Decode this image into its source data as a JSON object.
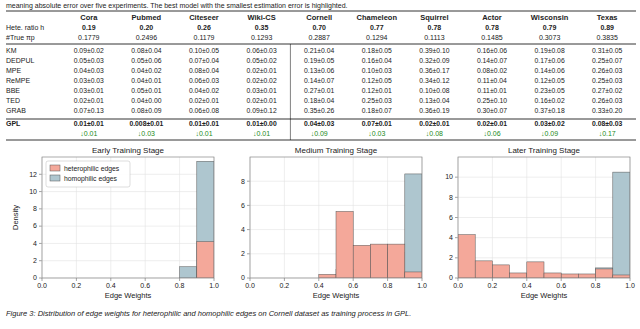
{
  "chart_data": [
    {
      "type": "table",
      "subtitle": "meaning absolute error over five experiments. The best model with the smallest estimation error is highlighted.",
      "caption": "Figure 3: Distribution of edge weights for heterophilic and homophilic edges on Cornell dataset as training process in GPL.",
      "categories": [
        "Cora",
        "Pubmed",
        "Citeseer",
        "Wiki-CS",
        "Cornell",
        "Chameleon",
        "Squirrel",
        "Actor",
        "Wisconsin",
        "Texas"
      ],
      "header_rows": [
        {
          "name": "Hete. ratio h",
          "values": [
            "0.19",
            "0.20",
            "0.26",
            "0.35",
            "0.70",
            "0.77",
            "0.78",
            "0.78",
            "0.79",
            "0.89"
          ]
        },
        {
          "name": "#True πp",
          "values": [
            "0.1779",
            "0.2496",
            "0.1179",
            "0.1293",
            "0.2887",
            "0.1294",
            "0.1113",
            "0.1485",
            "0.3073",
            "0.3835"
          ]
        }
      ],
      "series": [
        {
          "name": "KM",
          "values": [
            "0.09±0.02",
            "0.08±0.04",
            "0.10±0.05",
            "0.06±0.03",
            "0.21±0.04",
            "0.18±0.05",
            "0.39±0.10",
            "0.16±0.06",
            "0.19±0.08",
            "0.31±0.05"
          ]
        },
        {
          "name": "DEDPUL",
          "values": [
            "0.05±0.03",
            "0.05±0.06",
            "0.07±0.04",
            "0.05±0.02",
            "0.19±0.05",
            "0.16±0.04",
            "0.32±0.09",
            "0.14±0.07",
            "0.17±0.06",
            "0.25±0.07"
          ]
        },
        {
          "name": "MPE",
          "values": [
            "0.04±0.03",
            "0.04±0.02",
            "0.08±0.04",
            "0.02±0.01",
            "0.13±0.06",
            "0.10±0.03",
            "0.36±0.17",
            "0.08±0.02",
            "0.14±0.06",
            "0.26±0.03"
          ]
        },
        {
          "name": "ReMPE",
          "values": [
            "0.03±0.03",
            "0.04±0.01",
            "0.06±0.03",
            "0.02±0.02",
            "0.14±0.07",
            "0.12±0.05",
            "0.34±0.12",
            "0.11±0.04",
            "0.12±0.05",
            "0.25±0.03"
          ]
        },
        {
          "name": "BBE",
          "values": [
            "0.03±0.01",
            "0.05±0.01",
            "0.04±0.02",
            "0.03±0.01",
            "0.27±0.01",
            "0.12±0.01",
            "0.10±0.08",
            "0.11±0.01",
            "0.23±0.05",
            "0.27±0.02"
          ]
        },
        {
          "name": "TED",
          "values": [
            "0.02±0.01",
            "0.04±0.00",
            "0.02±0.01",
            "0.02±0.01",
            "0.18±0.04",
            "0.25±0.03",
            "0.13±0.04",
            "0.25±0.10",
            "0.16±0.02",
            "0.26±0.03"
          ]
        },
        {
          "name": "GRAB",
          "values": [
            "0.07±0.13",
            "0.08±0.09",
            "0.06±0.08",
            "0.09±0.12",
            "0.35±0.26",
            "0.18±0.07",
            "0.36±0.19",
            "0.30±0.07",
            "0.37±0.18",
            "0.33±0.20"
          ]
        },
        {
          "name": "GPL",
          "values": [
            "0.01±0.01",
            "0.008±0.01",
            "0.01±0.01",
            "0.01±0.00",
            "0.04±0.03",
            "0.07±0.01",
            "0.02±0.01",
            "0.02±0.01",
            "0.03±0.02",
            "0.08±0.03"
          ],
          "improvements": {
            "color": "#228B22",
            "values": [
              "↓0.01",
              "↓0.03",
              "↓0.01",
              "↓0.01",
              "↓0.09",
              "↓0.03",
              "↓0.08",
              "↓0.06",
              "↓0.09",
              "↓0.17"
            ]
          }
        }
      ]
    },
    {
      "type": "histogram",
      "title": "Early Training Stage",
      "xlabel": "Edge Weights",
      "ylabel": "Density",
      "bins": [
        0.0,
        0.1,
        0.2,
        0.3,
        0.4,
        0.5,
        0.6,
        0.7,
        0.8,
        0.9,
        1.0
      ],
      "series": [
        {
          "name": "heterophilic edges",
          "color": "#F4A89A",
          "values": [
            0,
            0,
            0,
            0,
            0,
            0,
            0,
            0,
            0,
            4.2
          ]
        },
        {
          "name": "homophilic edges",
          "color": "#AEC6CF",
          "values": [
            0,
            0,
            0,
            0,
            0,
            0,
            0,
            0,
            1.3,
            13.5
          ]
        }
      ],
      "xlim": [
        0,
        1
      ],
      "xticks": [
        {
          "value": 0,
          "label": "0.0"
        },
        0.2,
        0.4,
        0.6,
        0.8,
        {
          "value": 1,
          "label": "1.0"
        }
      ],
      "ylim": [
        0,
        14
      ],
      "yticks": [
        0,
        2,
        4,
        6,
        8,
        10,
        12
      ],
      "grid": true,
      "legend": "upper left"
    },
    {
      "type": "histogram",
      "title": "Medium Training Stage",
      "xlabel": "Edge Weights",
      "bins": [
        0.0,
        0.1,
        0.2,
        0.3,
        0.4,
        0.5,
        0.6,
        0.7,
        0.8,
        0.9,
        1.0
      ],
      "series": [
        {
          "color": "#F4A89A",
          "values": [
            0,
            0,
            0,
            0,
            0.3,
            5.5,
            2.7,
            2.8,
            2.8,
            0.5
          ]
        },
        {
          "color": "#AEC6CF",
          "values": [
            0,
            0,
            0,
            0,
            0,
            0.7,
            0,
            2.5,
            2.1,
            8.6
          ]
        }
      ],
      "xlim": [
        0,
        1
      ],
      "xticks": [
        {
          "value": 0,
          "label": "0.0"
        },
        0.2,
        0.4,
        0.6,
        0.8,
        {
          "value": 1,
          "label": "1.0"
        }
      ],
      "ylim": [
        0,
        10
      ],
      "yticks": [
        0,
        2,
        4,
        6,
        8
      ],
      "grid": true
    },
    {
      "type": "histogram",
      "title": "Later Training Stage",
      "xlabel": "Edge Weights",
      "bins": [
        0.0,
        0.1,
        0.2,
        0.3,
        0.4,
        0.5,
        0.6,
        0.7,
        0.8,
        0.9,
        1.0
      ],
      "series": [
        {
          "color": "#F4A89A",
          "values": [
            4.3,
            1.7,
            1.3,
            0.5,
            1.6,
            0.5,
            0.4,
            0.4,
            0.9,
            0.3
          ]
        },
        {
          "color": "#AEC6CF",
          "values": [
            0.1,
            0,
            0,
            0,
            0,
            0,
            0.1,
            0,
            1.0,
            10.5
          ]
        }
      ],
      "xlim": [
        0,
        1
      ],
      "xticks": [
        {
          "value": 0,
          "label": "0.0"
        },
        0.2,
        0.4,
        0.6,
        0.8,
        {
          "value": 1,
          "label": "1.0"
        }
      ],
      "ylim": [
        0,
        12
      ],
      "yticks": [
        0,
        2,
        4,
        6,
        8,
        10
      ],
      "grid": true
    }
  ]
}
